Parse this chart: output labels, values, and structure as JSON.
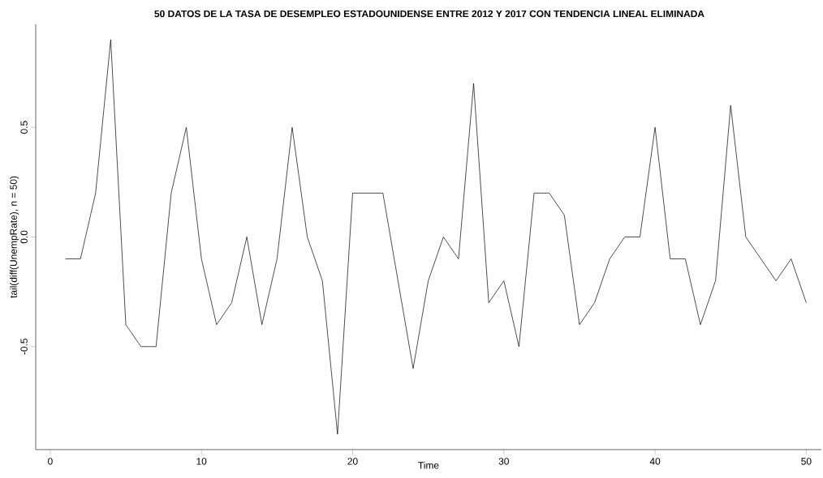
{
  "chart_data": {
    "type": "line",
    "title": "50 DATOS DE LA TASA DE DESEMPLEO ESTADOUNIDENSE ENTRE 2012 Y 2017 CON TENDENCIA LINEAL ELIMINADA",
    "xlabel": "Time",
    "ylabel": "tail(diff(UnempRate), n = 50)",
    "x": [
      1,
      2,
      3,
      4,
      5,
      6,
      7,
      8,
      9,
      10,
      11,
      12,
      13,
      14,
      15,
      16,
      17,
      18,
      19,
      20,
      21,
      22,
      23,
      24,
      25,
      26,
      27,
      28,
      29,
      30,
      31,
      32,
      33,
      34,
      35,
      36,
      37,
      38,
      39,
      40,
      41,
      42,
      43,
      44,
      45,
      46,
      47,
      48,
      49,
      50
    ],
    "values": [
      -0.1,
      -0.1,
      0.2,
      0.9,
      -0.4,
      -0.5,
      -0.5,
      0.2,
      0.5,
      -0.1,
      -0.4,
      -0.3,
      0.0,
      -0.4,
      -0.1,
      0.5,
      0.0,
      -0.2,
      -0.9,
      0.2,
      0.2,
      0.2,
      -0.2,
      -0.6,
      -0.2,
      0.0,
      -0.1,
      0.7,
      -0.3,
      -0.2,
      -0.5,
      0.2,
      0.2,
      0.1,
      -0.4,
      -0.3,
      -0.1,
      0.0,
      0.0,
      0.5,
      -0.1,
      -0.1,
      -0.4,
      -0.2,
      0.6,
      0.0,
      -0.1,
      -0.2,
      -0.1,
      -0.3
    ],
    "color": "#000000",
    "xlim": [
      -0.96,
      51.0
    ],
    "ylim": [
      -0.97,
      0.97
    ],
    "xticks": [
      0,
      10,
      20,
      30,
      40,
      50
    ],
    "yticks": [
      -0.5,
      {
        "value": 0,
        "label": "0.0"
      },
      0.5
    ]
  }
}
